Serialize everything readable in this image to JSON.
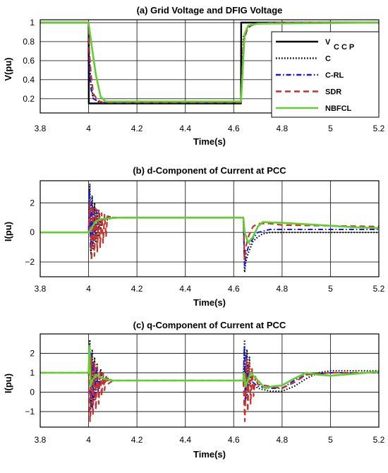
{
  "chart_data": [
    {
      "type": "line",
      "title": "(a) Grid Voltage and DFIG Voltage",
      "xlabel": "Time(s)",
      "ylabel": "V(pu)",
      "xlim": [
        3.8,
        5.2
      ],
      "ylim": [
        0.05,
        1.03
      ],
      "xticks": [
        3.8,
        4,
        4.2,
        4.4,
        4.6,
        4.8,
        5,
        5.2
      ],
      "yticks": [
        0.2,
        0.4,
        0.6,
        0.8,
        1
      ],
      "xtick_labels": [
        "3.8",
        "4",
        "4.2",
        "4.4",
        "4.6",
        "4.8",
        "5",
        "5.2"
      ],
      "ytick_labels": [
        "0.2",
        "0.4",
        "0.6",
        "0.8",
        "1"
      ],
      "grid": true,
      "legend_position": "top-right",
      "legend": [
        {
          "label": "V",
          "sub": "CCP",
          "color": "#000000",
          "dash": "solid"
        },
        {
          "label": "C",
          "color": "#000000",
          "dash": "dotted"
        },
        {
          "label": "C-RL",
          "color": "#1a1adb",
          "dash": "dashdot"
        },
        {
          "label": "SDR",
          "color": "#c8302a",
          "dash": "dashed"
        },
        {
          "label": "NBFCL",
          "color": "#5ecf2e",
          "dash": "solid"
        }
      ],
      "series": [
        {
          "key": "vccp",
          "color": "#000000",
          "dash": "solid",
          "width": 2.4,
          "x": [
            3.8,
            4.0,
            4.001,
            4.63,
            4.631,
            5.2
          ],
          "y": [
            1.0,
            1.0,
            0.15,
            0.15,
            1.0,
            1.0
          ]
        },
        {
          "key": "c",
          "color": "#000000",
          "dash": "dotted",
          "width": 2,
          "x": [
            3.8,
            4.0,
            4.004,
            4.01,
            4.02,
            4.04,
            4.06,
            4.63,
            4.64,
            4.66,
            4.7,
            4.8,
            5.2
          ],
          "y": [
            1.0,
            1.0,
            0.6,
            0.35,
            0.2,
            0.17,
            0.16,
            0.16,
            0.85,
            0.97,
            0.99,
            1.0,
            1.0
          ]
        },
        {
          "key": "crl",
          "color": "#1a1adb",
          "dash": "dashdot",
          "width": 2,
          "x": [
            3.8,
            4.0,
            4.003,
            4.01,
            4.02,
            4.04,
            4.06,
            4.63,
            4.64,
            4.65,
            4.68,
            4.75,
            5.2
          ],
          "y": [
            1.0,
            1.0,
            0.55,
            0.3,
            0.2,
            0.17,
            0.16,
            0.16,
            0.7,
            0.93,
            0.98,
            1.0,
            1.0
          ]
        },
        {
          "key": "sdr",
          "color": "#c8302a",
          "dash": "dashed",
          "width": 2.2,
          "x": [
            3.8,
            4.0,
            4.003,
            4.01,
            4.02,
            4.04,
            4.06,
            4.63,
            4.64,
            4.66,
            4.7,
            4.8,
            5.2
          ],
          "y": [
            1.0,
            1.0,
            0.7,
            0.45,
            0.25,
            0.18,
            0.16,
            0.16,
            0.8,
            0.96,
            0.99,
            1.0,
            1.0
          ]
        },
        {
          "key": "nbfcl",
          "color": "#5ecf2e",
          "dash": "solid",
          "width": 2.6,
          "x": [
            3.8,
            4.0,
            4.005,
            4.015,
            4.03,
            4.05,
            4.07,
            4.63,
            4.635,
            4.645,
            4.66,
            4.7,
            5.2
          ],
          "y": [
            1.0,
            1.0,
            0.9,
            0.72,
            0.45,
            0.22,
            0.17,
            0.17,
            0.4,
            0.88,
            0.97,
            0.99,
            1.0
          ]
        }
      ]
    },
    {
      "type": "line",
      "title": "(b) d-Component of Current at PCC",
      "xlabel": "Time(s)",
      "ylabel": "I(pu)",
      "xlim": [
        3.8,
        5.2
      ],
      "ylim": [
        -3,
        3.5
      ],
      "xticks": [
        3.8,
        4,
        4.2,
        4.4,
        4.6,
        4.8,
        5,
        5.2
      ],
      "yticks": [
        -2,
        0,
        2
      ],
      "xtick_labels": [
        "3.8",
        "4",
        "4.2",
        "4.4",
        "4.6",
        "4.8",
        "5",
        "5.2"
      ],
      "ytick_labels": [
        "−2",
        "0",
        "2"
      ],
      "grid": true,
      "series": [
        {
          "key": "c",
          "color": "#000000",
          "dash": "dotted",
          "width": 2,
          "x": [
            3.8,
            4.0,
            4.005,
            4.01,
            4.015,
            4.02,
            4.025,
            4.03,
            4.035,
            4.04,
            4.045,
            4.05,
            4.06,
            4.07,
            4.1,
            4.64,
            4.645,
            4.65,
            4.66,
            4.67,
            4.68,
            4.7,
            4.72,
            4.75,
            4.8,
            5.2
          ],
          "y": [
            0,
            0,
            3.3,
            -1.5,
            2.5,
            -1.1,
            2.0,
            -0.7,
            1.6,
            -0.3,
            1.3,
            0.2,
            0.9,
            0.8,
            1.0,
            1.0,
            -2.7,
            -2.0,
            -1.4,
            -1.0,
            -0.6,
            -0.3,
            -0.1,
            0.0,
            0.0,
            0.0
          ]
        },
        {
          "key": "crl",
          "color": "#1a1adb",
          "dash": "dashdot",
          "width": 2,
          "x": [
            3.8,
            4.0,
            4.004,
            4.008,
            4.012,
            4.016,
            4.02,
            4.026,
            4.032,
            4.04,
            4.05,
            4.06,
            4.08,
            4.64,
            4.645,
            4.65,
            4.66,
            4.68,
            4.7,
            4.75,
            4.8,
            5.2
          ],
          "y": [
            0,
            0,
            2.9,
            -1.2,
            2.3,
            -0.8,
            1.8,
            -0.5,
            1.5,
            0.2,
            0.8,
            0.9,
            1.0,
            1.0,
            -2.3,
            -1.6,
            -1.0,
            -0.4,
            0.0,
            0.2,
            0.2,
            0.2
          ]
        },
        {
          "key": "sdr",
          "color": "#c8302a",
          "dash": "dashed",
          "width": 2.2,
          "x": [
            3.8,
            4.0,
            4.006,
            4.012,
            4.018,
            4.024,
            4.03,
            4.036,
            4.042,
            4.048,
            4.054,
            4.06,
            4.066,
            4.072,
            4.078,
            4.1,
            4.64,
            4.645,
            4.65,
            4.66,
            4.68,
            4.7,
            4.75,
            4.8,
            5.2
          ],
          "y": [
            0,
            0,
            2.0,
            -1.9,
            1.8,
            -1.6,
            1.6,
            -1.3,
            1.5,
            -1.0,
            1.3,
            -0.7,
            1.2,
            -0.3,
            1.1,
            1.0,
            1.0,
            -1.8,
            -1.0,
            -0.3,
            0.4,
            0.6,
            0.6,
            0.5,
            0.4
          ]
        },
        {
          "key": "nbfcl",
          "color": "#5ecf2e",
          "dash": "solid",
          "width": 2.6,
          "x": [
            3.8,
            4.0,
            4.01,
            4.02,
            4.03,
            4.05,
            4.08,
            4.12,
            4.64,
            4.645,
            4.66,
            4.68,
            4.7,
            4.72,
            4.8,
            4.9,
            5.0,
            5.1,
            5.2
          ],
          "y": [
            0,
            0,
            0.2,
            0.5,
            0.75,
            0.9,
            0.95,
            1.0,
            1.0,
            0.0,
            -0.7,
            -0.3,
            0.4,
            0.7,
            0.65,
            0.55,
            0.45,
            0.35,
            0.3
          ]
        }
      ]
    },
    {
      "type": "line",
      "title": "(c) q-Component of Current at PCC",
      "xlabel": "Time(s)",
      "ylabel": "I(pu)",
      "xlim": [
        3.8,
        5.2
      ],
      "ylim": [
        -1.8,
        3.0
      ],
      "xticks": [
        3.8,
        4,
        4.2,
        4.4,
        4.6,
        4.8,
        5,
        5.2
      ],
      "yticks": [
        -1,
        0,
        1,
        2
      ],
      "xtick_labels": [
        "3.8",
        "4",
        "4.2",
        "4.4",
        "4.6",
        "4.8",
        "5",
        "5.2"
      ],
      "ytick_labels": [
        "−1",
        "0",
        "1",
        "2"
      ],
      "grid": true,
      "series": [
        {
          "key": "c",
          "color": "#000000",
          "dash": "dotted",
          "width": 2,
          "x": [
            3.8,
            4.0,
            4.005,
            4.01,
            4.015,
            4.02,
            4.025,
            4.03,
            4.035,
            4.04,
            4.05,
            4.06,
            4.08,
            4.1,
            4.64,
            4.645,
            4.65,
            4.655,
            4.66,
            4.665,
            4.67,
            4.68,
            4.7,
            4.75,
            4.8,
            4.85,
            4.9,
            4.95,
            5.0,
            5.2
          ],
          "y": [
            1.0,
            1.0,
            2.7,
            -0.8,
            2.2,
            -0.4,
            1.8,
            -0.1,
            1.5,
            0.1,
            1.2,
            0.4,
            0.7,
            0.6,
            0.6,
            2.7,
            -0.3,
            2.2,
            0.0,
            1.8,
            0.3,
            0.4,
            0.2,
            0.05,
            0.05,
            0.3,
            0.7,
            1.0,
            1.1,
            1.1
          ]
        },
        {
          "key": "crl",
          "color": "#1a1adb",
          "dash": "dashdot",
          "width": 2,
          "x": [
            3.8,
            4.0,
            4.004,
            4.008,
            4.012,
            4.016,
            4.02,
            4.026,
            4.032,
            4.04,
            4.05,
            4.07,
            4.1,
            4.64,
            4.644,
            4.648,
            4.652,
            4.656,
            4.66,
            4.67,
            4.7,
            4.75,
            4.8,
            4.85,
            4.9,
            5.0,
            5.2
          ],
          "y": [
            1.0,
            1.0,
            2.4,
            -1.2,
            2.0,
            -0.8,
            1.6,
            -0.4,
            1.3,
            0.0,
            1.0,
            0.6,
            0.6,
            0.6,
            2.4,
            -0.6,
            1.9,
            -0.2,
            1.4,
            0.6,
            0.3,
            0.2,
            0.2,
            0.6,
            0.9,
            1.0,
            1.0
          ]
        },
        {
          "key": "sdr",
          "color": "#c8302a",
          "dash": "dashed",
          "width": 2.2,
          "x": [
            3.8,
            4.0,
            4.006,
            4.012,
            4.018,
            4.024,
            4.03,
            4.036,
            4.042,
            4.048,
            4.054,
            4.06,
            4.066,
            4.072,
            4.078,
            4.1,
            4.64,
            4.646,
            4.652,
            4.658,
            4.664,
            4.67,
            4.676,
            4.682,
            4.69,
            4.7,
            4.75,
            4.8,
            4.85,
            4.9,
            5.0,
            5.2
          ],
          "y": [
            1.0,
            1.0,
            -1.5,
            1.8,
            -1.2,
            1.5,
            -0.9,
            1.3,
            -0.6,
            1.1,
            -0.2,
            1.0,
            0.1,
            0.9,
            0.4,
            0.6,
            0.6,
            -1.5,
            1.7,
            -1.0,
            1.5,
            -0.6,
            1.2,
            -0.2,
            0.8,
            0.4,
            0.3,
            0.2,
            0.5,
            0.9,
            1.0,
            1.0
          ]
        },
        {
          "key": "nbfcl",
          "color": "#5ecf2e",
          "dash": "solid",
          "width": 2.6,
          "x": [
            3.8,
            4.0,
            4.003,
            4.008,
            4.015,
            4.03,
            4.06,
            4.1,
            4.64,
            4.643,
            4.65,
            4.67,
            4.7,
            4.73,
            4.76,
            4.8,
            4.85,
            4.9,
            4.95,
            5.0,
            5.05,
            5.1,
            5.15,
            5.2
          ],
          "y": [
            1.0,
            1.0,
            2.4,
            0.3,
            0.6,
            0.9,
            0.7,
            0.6,
            0.6,
            1.0,
            0.3,
            1.0,
            0.6,
            0.2,
            0.3,
            0.35,
            0.7,
            1.0,
            0.9,
            0.85,
            0.9,
            0.95,
            1.0,
            1.05
          ]
        }
      ]
    }
  ]
}
